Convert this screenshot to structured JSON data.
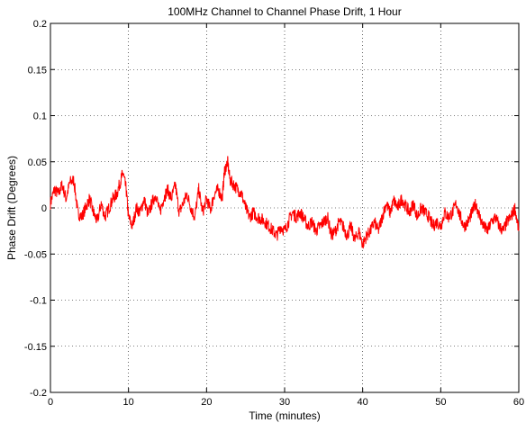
{
  "chart_data": {
    "type": "line",
    "title": "100MHz Channel to Channel Phase Drift, 1 Hour",
    "xlabel": "Time (minutes)",
    "ylabel": "Phase Drift (Degrees)",
    "xlim": [
      0,
      60
    ],
    "ylim": [
      -0.2,
      0.2
    ],
    "xticks": [
      0,
      10,
      20,
      30,
      40,
      50,
      60
    ],
    "xtick_labels": [
      "0",
      "10",
      "20",
      "30",
      "40",
      "50",
      "60"
    ],
    "yticks": [
      0.2,
      0.15,
      0.1,
      0.05,
      0,
      -0.05,
      -0.1,
      -0.15,
      -0.2
    ],
    "ytick_labels": [
      "0.2",
      "0.15",
      "0.1",
      "0.05",
      "0",
      "-0.05",
      "-0.1",
      "-0.15",
      "-0.2"
    ],
    "grid": "dotted at major ticks",
    "line_color": "#ff0000",
    "series": [
      {
        "x": [
          0,
          0.5,
          1,
          1.5,
          2,
          2.5,
          3,
          3.5,
          4,
          4.5,
          5,
          5.5,
          6,
          6.5,
          7,
          7.5,
          8,
          8.5,
          9,
          9.3,
          9.7,
          10,
          10.5,
          11,
          11.5,
          12,
          12.5,
          13,
          13.5,
          14,
          14.5,
          15,
          15.5,
          16,
          16.5,
          17,
          17.5,
          18,
          18.5,
          19,
          19.5,
          20,
          20.5,
          21,
          21.5,
          22,
          22.3,
          22.7,
          23,
          23.5,
          24,
          24.5,
          25,
          25.5,
          26,
          26.5,
          27,
          27.5,
          28,
          28.5,
          29,
          29.5,
          30,
          30.5,
          31,
          31.5,
          32,
          32.5,
          33,
          33.5,
          34,
          34.5,
          35,
          35.5,
          36,
          36.5,
          37,
          37.5,
          38,
          38.5,
          39,
          39.5,
          40,
          40.5,
          41,
          41.5,
          42,
          42.5,
          43,
          43.5,
          44,
          44.5,
          45,
          45.5,
          46,
          46.5,
          47,
          47.5,
          48,
          48.5,
          49,
          49.5,
          50,
          50.5,
          51,
          51.5,
          52,
          52.5,
          53,
          53.5,
          54,
          54.5,
          55,
          55.5,
          56,
          56.5,
          57,
          57.5,
          58,
          58.5,
          59,
          59.5,
          60
        ],
        "y": [
          0.005,
          0.02,
          0.015,
          0.025,
          0.01,
          0.028,
          0.03,
          -0.005,
          -0.01,
          0.0,
          0.01,
          -0.005,
          -0.015,
          0.005,
          -0.01,
          0.0,
          0.01,
          0.015,
          0.03,
          0.038,
          0.02,
          -0.01,
          -0.02,
          0.0,
          -0.005,
          0.01,
          -0.008,
          0.005,
          0.015,
          -0.005,
          0.01,
          0.02,
          0.01,
          0.025,
          -0.005,
          0.005,
          0.015,
          0.0,
          -0.01,
          0.02,
          -0.005,
          0.01,
          -0.002,
          0.015,
          0.02,
          0.01,
          0.04,
          0.05,
          0.03,
          0.025,
          0.02,
          0.015,
          0.0,
          -0.01,
          -0.005,
          -0.01,
          -0.012,
          -0.015,
          -0.02,
          -0.025,
          -0.03,
          -0.02,
          -0.025,
          -0.015,
          -0.005,
          -0.01,
          -0.005,
          -0.012,
          -0.02,
          -0.015,
          -0.025,
          -0.02,
          -0.015,
          -0.01,
          -0.03,
          -0.025,
          -0.015,
          -0.02,
          -0.03,
          -0.02,
          -0.035,
          -0.025,
          -0.04,
          -0.03,
          -0.025,
          -0.015,
          -0.025,
          -0.01,
          0.005,
          -0.005,
          0.008,
          0.0,
          0.01,
          0.002,
          -0.005,
          0.005,
          -0.01,
          0.0,
          -0.005,
          -0.01,
          -0.02,
          -0.015,
          -0.02,
          -0.005,
          -0.01,
          -0.005,
          0.005,
          -0.01,
          -0.02,
          -0.015,
          -0.005,
          0.005,
          -0.01,
          -0.02,
          -0.025,
          -0.015,
          -0.01,
          -0.02,
          -0.025,
          -0.015,
          -0.01,
          0.0,
          -0.025
        ]
      }
    ]
  }
}
